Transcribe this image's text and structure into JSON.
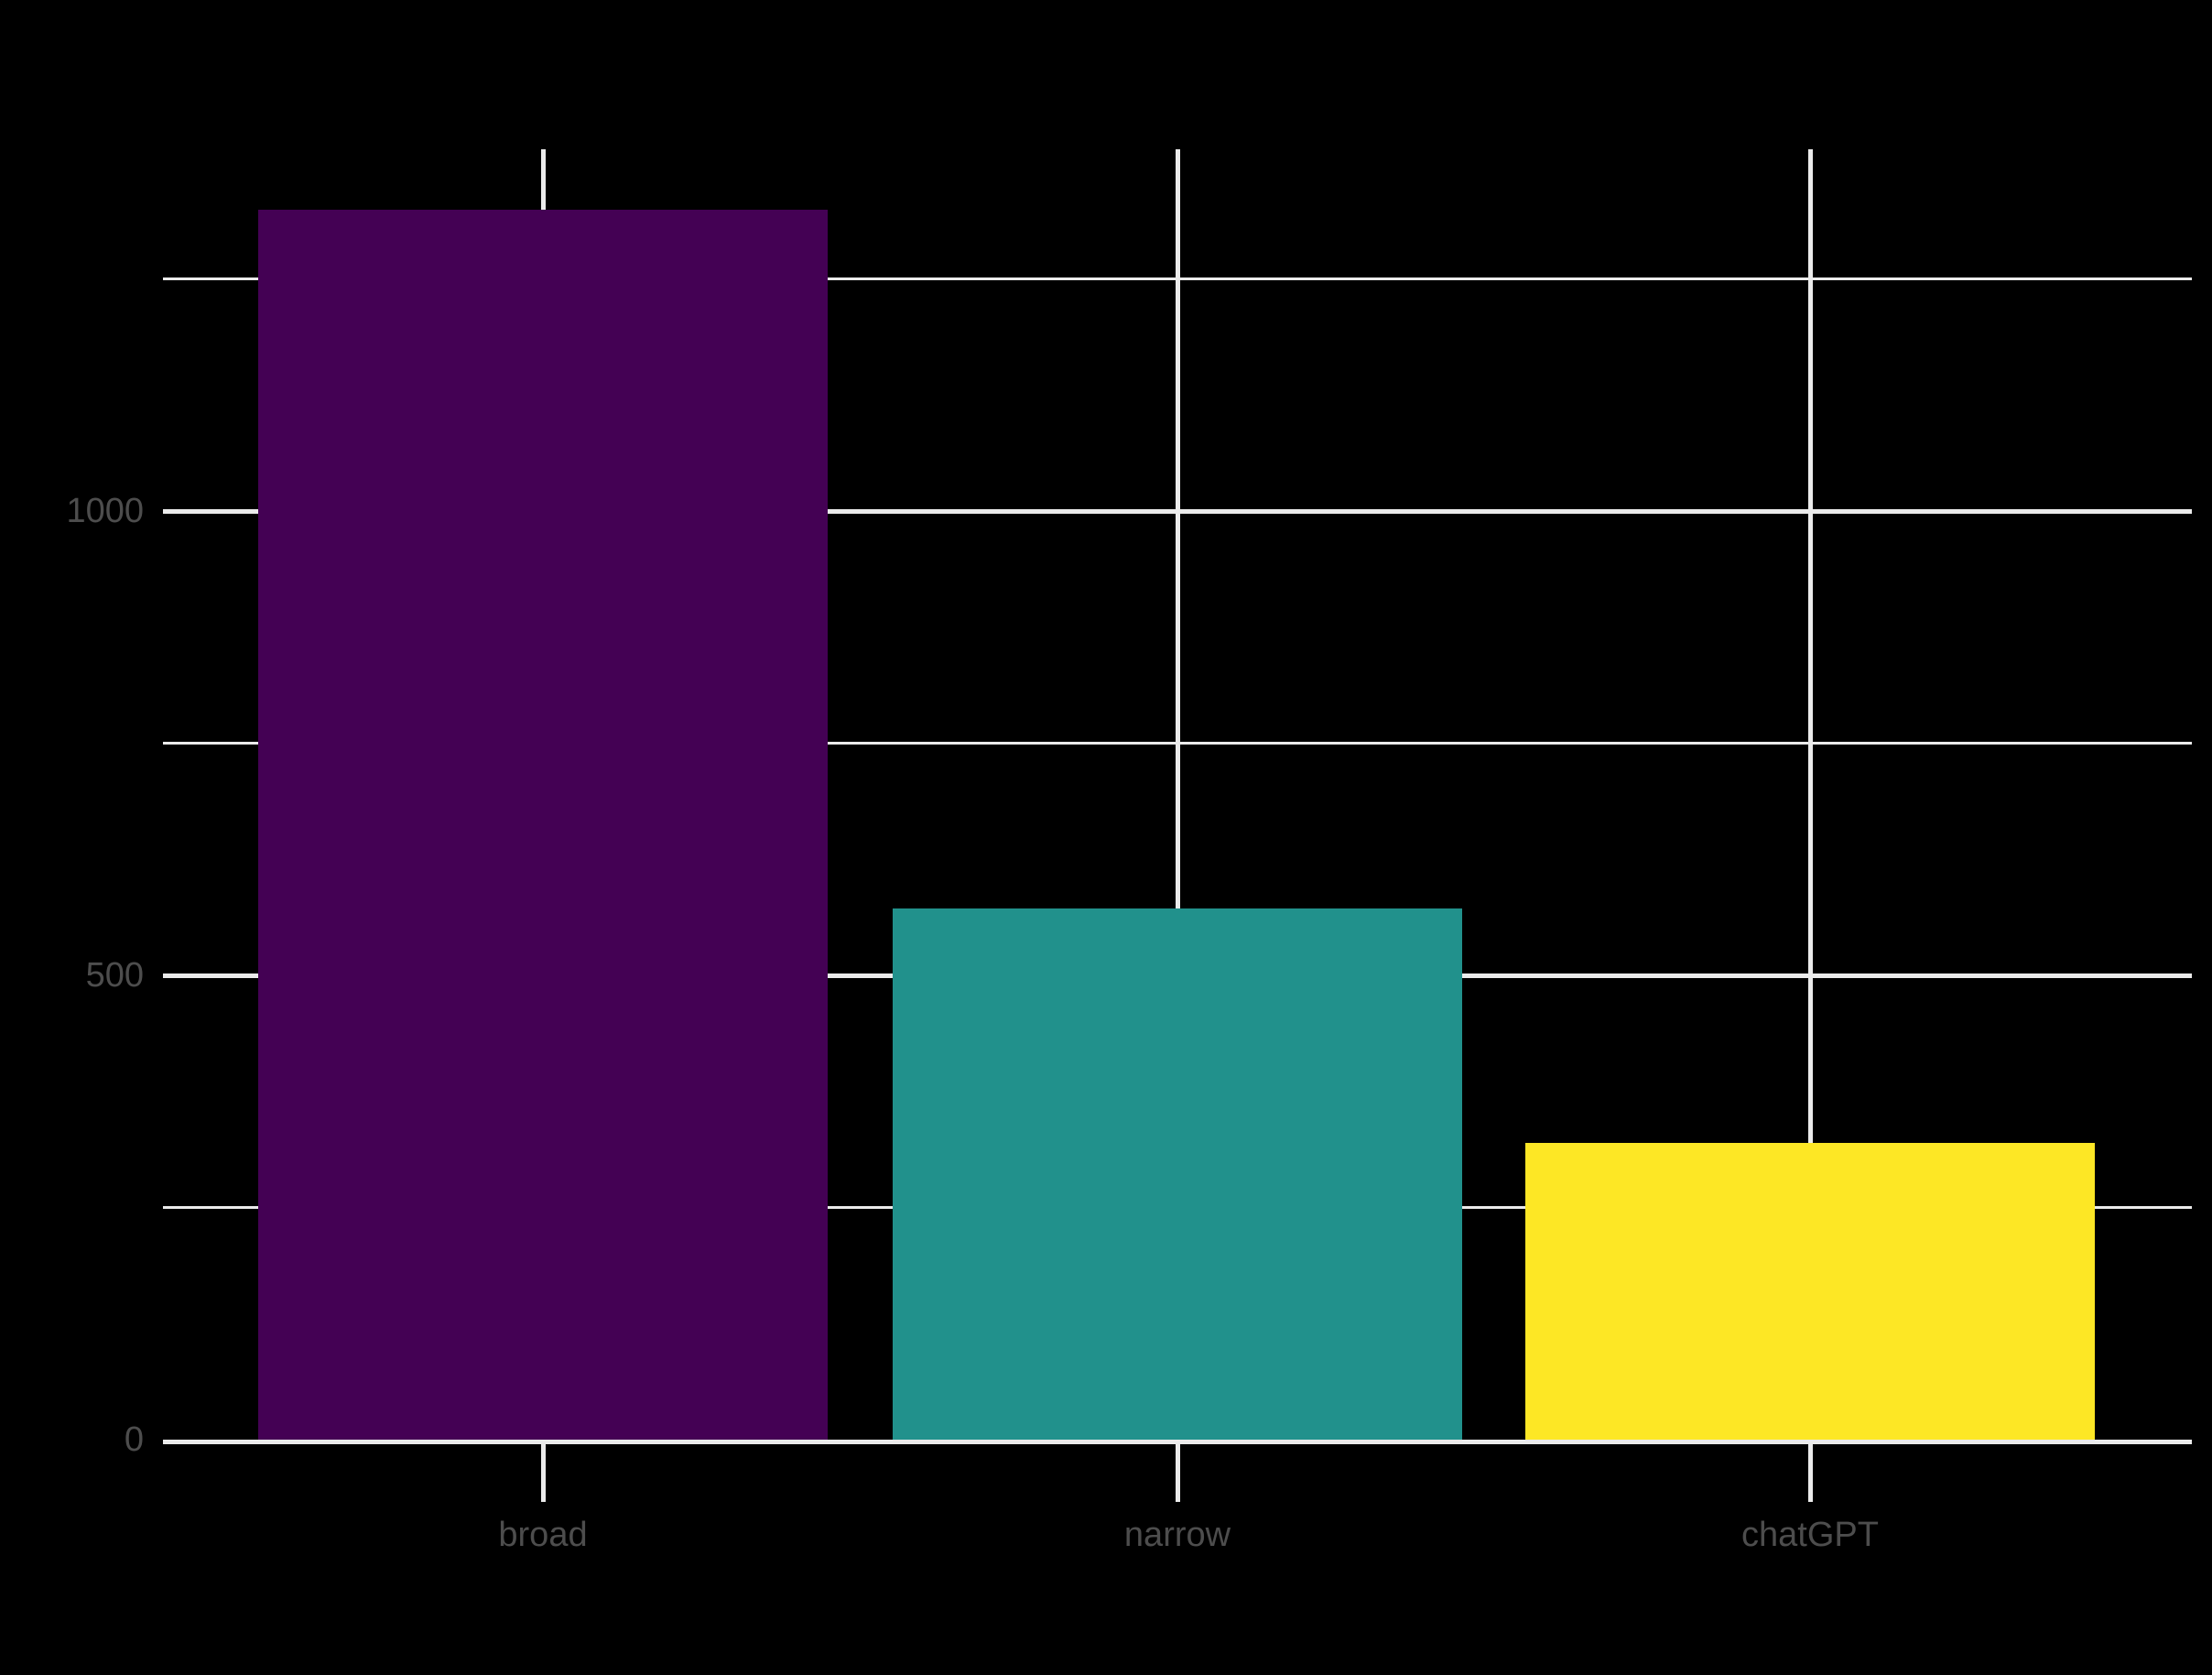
{
  "chart_data": {
    "type": "bar",
    "title": "",
    "xlabel": "",
    "ylabel": "",
    "categories": [
      "broad",
      "narrow",
      "chatGPT"
    ],
    "values": [
      1324,
      572,
      320
    ],
    "y_tick_labels": [
      "0",
      "500",
      "1000"
    ],
    "y_ticks_major": [
      0,
      500,
      1000
    ],
    "y_ticks_minor": [
      250,
      750,
      1250
    ],
    "ylim": [
      0,
      1389
    ],
    "grid": "on",
    "legend": "none",
    "palette": "viridis",
    "bar_colors": [
      "#440154",
      "#21918c",
      "#fde725"
    ],
    "background_color": "#000000",
    "gridline_color": "#ebebeb",
    "axis_text_color": "#4d4d4d"
  }
}
